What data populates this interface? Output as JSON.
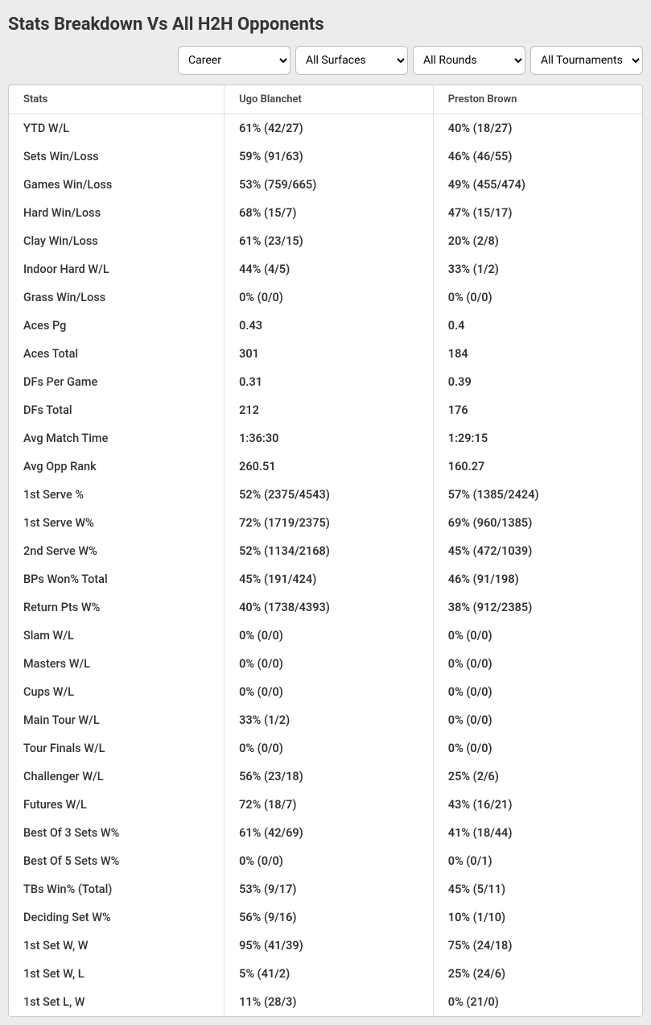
{
  "title": "Stats Breakdown Vs All H2H Opponents",
  "filters": {
    "time": {
      "selected": "Career"
    },
    "surface": {
      "selected": "All Surfaces"
    },
    "round": {
      "selected": "All Rounds"
    },
    "tourn": {
      "selected": "All Tournaments"
    }
  },
  "columns": {
    "stat": "Stats",
    "p1": "Ugo Blanchet",
    "p2": "Preston Brown"
  },
  "rows": [
    {
      "stat": "YTD W/L",
      "p1": "61% (42/27)",
      "p2": "40% (18/27)"
    },
    {
      "stat": "Sets Win/Loss",
      "p1": "59% (91/63)",
      "p2": "46% (46/55)"
    },
    {
      "stat": "Games Win/Loss",
      "p1": "53% (759/665)",
      "p2": "49% (455/474)"
    },
    {
      "stat": "Hard Win/Loss",
      "p1": "68% (15/7)",
      "p2": "47% (15/17)"
    },
    {
      "stat": "Clay Win/Loss",
      "p1": "61% (23/15)",
      "p2": "20% (2/8)"
    },
    {
      "stat": "Indoor Hard W/L",
      "p1": "44% (4/5)",
      "p2": "33% (1/2)"
    },
    {
      "stat": "Grass Win/Loss",
      "p1": "0% (0/0)",
      "p2": "0% (0/0)"
    },
    {
      "stat": "Aces Pg",
      "p1": "0.43",
      "p2": "0.4"
    },
    {
      "stat": "Aces Total",
      "p1": "301",
      "p2": "184"
    },
    {
      "stat": "DFs Per Game",
      "p1": "0.31",
      "p2": "0.39"
    },
    {
      "stat": "DFs Total",
      "p1": "212",
      "p2": "176"
    },
    {
      "stat": "Avg Match Time",
      "p1": "1:36:30",
      "p2": "1:29:15"
    },
    {
      "stat": "Avg Opp Rank",
      "p1": "260.51",
      "p2": "160.27"
    },
    {
      "stat": "1st Serve %",
      "p1": "52% (2375/4543)",
      "p2": "57% (1385/2424)"
    },
    {
      "stat": "1st Serve W%",
      "p1": "72% (1719/2375)",
      "p2": "69% (960/1385)"
    },
    {
      "stat": "2nd Serve W%",
      "p1": "52% (1134/2168)",
      "p2": "45% (472/1039)"
    },
    {
      "stat": "BPs Won% Total",
      "p1": "45% (191/424)",
      "p2": "46% (91/198)"
    },
    {
      "stat": "Return Pts W%",
      "p1": "40% (1738/4393)",
      "p2": "38% (912/2385)"
    },
    {
      "stat": "Slam W/L",
      "p1": "0% (0/0)",
      "p2": "0% (0/0)"
    },
    {
      "stat": "Masters W/L",
      "p1": "0% (0/0)",
      "p2": "0% (0/0)"
    },
    {
      "stat": "Cups W/L",
      "p1": "0% (0/0)",
      "p2": "0% (0/0)"
    },
    {
      "stat": "Main Tour W/L",
      "p1": "33% (1/2)",
      "p2": "0% (0/0)"
    },
    {
      "stat": "Tour Finals W/L",
      "p1": "0% (0/0)",
      "p2": "0% (0/0)"
    },
    {
      "stat": "Challenger W/L",
      "p1": "56% (23/18)",
      "p2": "25% (2/6)"
    },
    {
      "stat": "Futures W/L",
      "p1": "72% (18/7)",
      "p2": "43% (16/21)"
    },
    {
      "stat": "Best Of 3 Sets W%",
      "p1": "61% (42/69)",
      "p2": "41% (18/44)"
    },
    {
      "stat": "Best Of 5 Sets W%",
      "p1": "0% (0/0)",
      "p2": "0% (0/1)"
    },
    {
      "stat": "TBs Win% (Total)",
      "p1": "53% (9/17)",
      "p2": "45% (5/11)"
    },
    {
      "stat": "Deciding Set W%",
      "p1": "56% (9/16)",
      "p2": "10% (1/10)"
    },
    {
      "stat": "1st Set W, W",
      "p1": "95% (41/39)",
      "p2": "75% (24/18)"
    },
    {
      "stat": "1st Set W, L",
      "p1": "5% (41/2)",
      "p2": "25% (24/6)"
    },
    {
      "stat": "1st Set L, W",
      "p1": "11% (28/3)",
      "p2": "0% (21/0)"
    }
  ]
}
